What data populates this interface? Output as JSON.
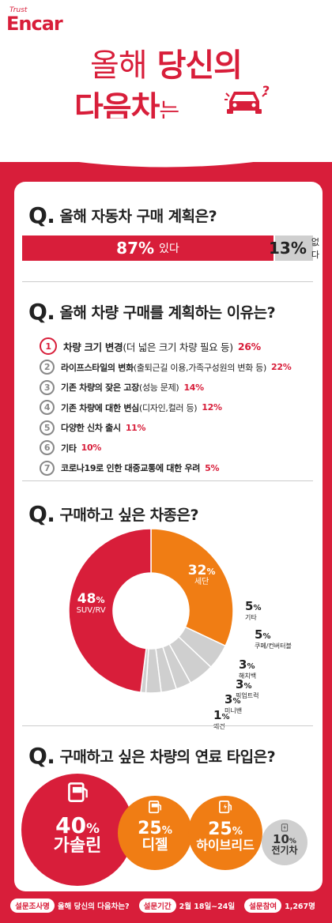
{
  "logo": {
    "trust": "Trust",
    "name": "Encar"
  },
  "title": {
    "line1_a": "올해",
    "line1_b": "당신의",
    "line2_a": "다음차",
    "line2_b": "는"
  },
  "q1": {
    "label": "올해 자동차 구매 계획은?"
  },
  "q2": {
    "label": "올해 차량 구매를 계획하는 이유는?"
  },
  "q3": {
    "label": "구매하고 싶은 차종은?"
  },
  "q4": {
    "label": "구매하고 싶은 차량의 연료 타입은?"
  },
  "qmark": "Q.",
  "footer": {
    "survey_item_tag": "설문조사명",
    "survey_item": "올해 당신의 다음차는?",
    "period_tag": "설문기간",
    "period": "2월 18일~24일",
    "participants_tag": "설문참여",
    "participants": "1,267명"
  },
  "icons": {
    "car": "car-icon",
    "gas": "gas-pump-icon",
    "diesel": "diesel-pump-icon",
    "hybrid": "hybrid-charger-icon",
    "electric": "electric-bolt-icon"
  },
  "colors": {
    "accent": "#d81e3a",
    "orange": "#f07d14",
    "gray": "#cfcfcf"
  },
  "chart_data": [
    {
      "type": "bar",
      "categories": [
        "있다",
        "없다"
      ],
      "values": [
        87,
        13
      ],
      "labels": [
        "87%",
        "13%"
      ]
    },
    {
      "type": "table",
      "rows": [
        {
          "no": "1",
          "text_bold": "차량 크기 변경",
          "text": "(더 넓은 크기 차량 필요 등)",
          "value": 26,
          "label": "26%"
        },
        {
          "no": "2",
          "text_bold": "라이프스타일의 변화",
          "text": "(출퇴근길 이용,가족구성원의 변화 등)",
          "value": 22,
          "label": "22%"
        },
        {
          "no": "3",
          "text_bold": "기존 차량의 잦은 고장",
          "text": "(성능 문제)",
          "value": 14,
          "label": "14%"
        },
        {
          "no": "4",
          "text_bold": "기존 차량에 대한 변심",
          "text": "(디자인,컬러 등)",
          "value": 12,
          "label": "12%"
        },
        {
          "no": "5",
          "text_bold": "다양한 신차 출시",
          "text": "",
          "value": 11,
          "label": "11%"
        },
        {
          "no": "6",
          "text_bold": "기타",
          "text": "",
          "value": 10,
          "label": "10%"
        },
        {
          "no": "7",
          "text_bold": "코로나19로 인한 대중교통에 대한 우려",
          "text": "",
          "value": 5,
          "label": "5%"
        }
      ]
    },
    {
      "type": "pie",
      "categories": [
        "세단",
        "기타",
        "쿠페/컨버터블",
        "해치백",
        "픽업트럭",
        "미니밴",
        "왜건",
        "SUV/RV"
      ],
      "values": [
        32,
        5,
        5,
        3,
        3,
        3,
        1,
        48
      ],
      "labels": [
        "32",
        "5",
        "5",
        "3",
        "3",
        "3",
        "1",
        "48"
      ],
      "unit": "%",
      "colors": [
        "#f07d14",
        "#cfcfcf",
        "#cfcfcf",
        "#cfcfcf",
        "#cfcfcf",
        "#cfcfcf",
        "#cfcfcf",
        "#d81e3a"
      ]
    },
    {
      "type": "bubble",
      "categories": [
        "가솔린",
        "디젤",
        "하이브리드",
        "전기차"
      ],
      "values": [
        40,
        25,
        25,
        10
      ],
      "labels": [
        "40",
        "25",
        "25",
        "10"
      ],
      "unit": "%",
      "colors": [
        "#d81e3a",
        "#f07d14",
        "#f07d14",
        "#cfcfcf"
      ]
    }
  ]
}
